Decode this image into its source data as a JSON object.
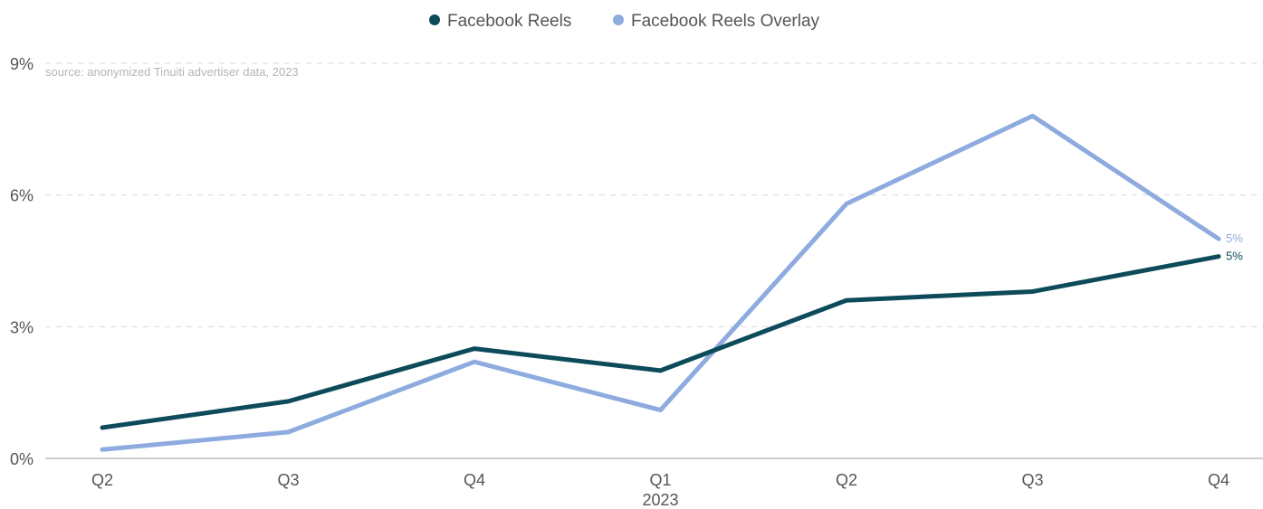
{
  "chart_data": {
    "type": "line",
    "source_note": "source: anonymized Tinuiti advertiser data, 2023",
    "categories": [
      "Q2",
      "Q3",
      "Q4",
      "Q1",
      "Q2",
      "Q3",
      "Q4"
    ],
    "year_label": "2023",
    "y_ticks": [
      "0%",
      "3%",
      "6%",
      "9%"
    ],
    "y_tick_values": [
      0,
      3,
      6,
      9
    ],
    "ylim": [
      0,
      9
    ],
    "grid": true,
    "legend_position": "top-center",
    "series": [
      {
        "name": "Facebook Reels",
        "color": "#0d4a5a",
        "values": [
          0.7,
          1.3,
          2.5,
          2.0,
          3.6,
          3.8,
          4.6
        ],
        "end_label": "5%"
      },
      {
        "name": "Facebook Reels Overlay",
        "color": "#8eabe0",
        "values": [
          0.2,
          0.6,
          2.2,
          1.1,
          5.8,
          7.8,
          5.0
        ],
        "end_label": "5%"
      }
    ]
  }
}
